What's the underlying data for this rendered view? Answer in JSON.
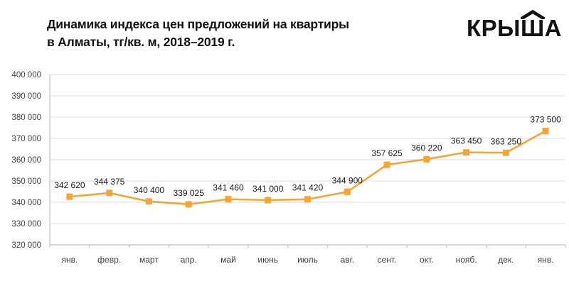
{
  "title": {
    "line1": "Динамика индекса цен предложений на квартиры",
    "line2": "в Алматы, тг/кв. м, 2018–2019 г."
  },
  "logo": {
    "text": "КРЫША",
    "part1": "КРЫ",
    "part2": "Ш",
    "part3": "А",
    "color": "#121212"
  },
  "chart_data": {
    "type": "line",
    "title": "Динамика индекса цен предложений на квартиры в Алматы, тг/кв. м, 2018–2019 г.",
    "categories": [
      "янв.",
      "февр.",
      "март",
      "апр.",
      "май",
      "июнь",
      "июль",
      "авг.",
      "сент.",
      "окт.",
      "нояб.",
      "дек.",
      "янв."
    ],
    "values": [
      342620,
      344375,
      340400,
      339025,
      341460,
      341000,
      341420,
      344900,
      357625,
      360220,
      363450,
      363250,
      373500
    ],
    "value_labels": [
      "342 620",
      "344 375",
      "340 400",
      "339 025",
      "341 460",
      "341 000",
      "341 420",
      "344 900",
      "357 625",
      "360 220",
      "363 450",
      "363 250",
      "373 500"
    ],
    "xlabel": "",
    "ylabel": "",
    "ylim": [
      320000,
      400000
    ],
    "ytick_step": 10000,
    "ytick_labels": [
      "400 000",
      "390 000",
      "380 000",
      "370 000",
      "360 000",
      "350 000",
      "340 000",
      "330 000",
      "320 000"
    ],
    "grid": true,
    "legend": "none",
    "series_color": "#F5A435",
    "grid_color": "#DDDDDD",
    "axis_color": "#BFBFBF"
  }
}
